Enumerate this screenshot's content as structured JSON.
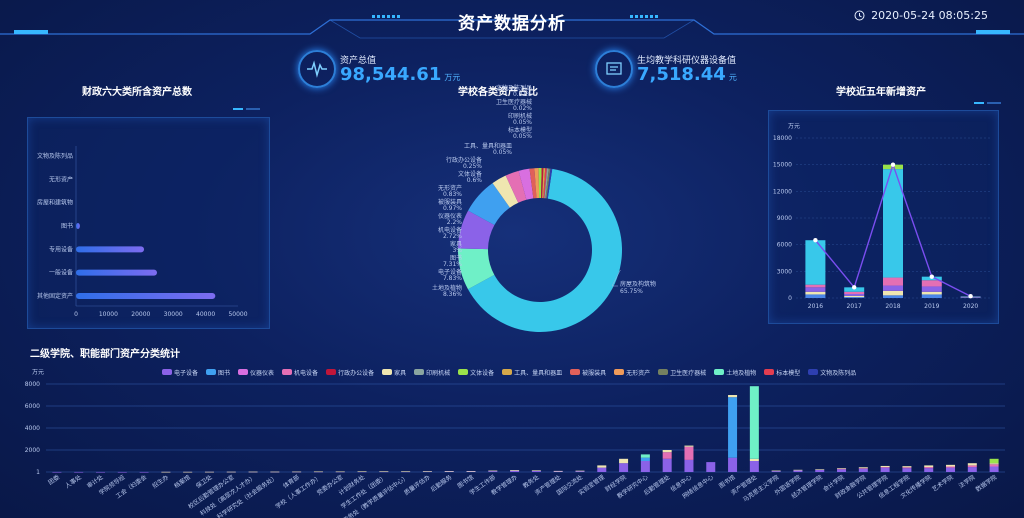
{
  "header": {
    "title": "资产数据分析",
    "datetime": "2020-05-24 08:05:25",
    "clock_icon": "clock-icon"
  },
  "kpis": [
    {
      "label": "资产总值",
      "value": "98,544.61",
      "unit": "万元",
      "icon": "pulse-icon"
    },
    {
      "label": "生均教学科研仪器设备值",
      "value": "7,518.44",
      "unit": "元",
      "icon": "instrument-icon"
    }
  ],
  "panels": {
    "left_title": "财政六大类所含资产总数",
    "center_title": "学校各类资产占比",
    "right_title": "学校近五年新增资产",
    "bottom_title": "二级学院、职能部门资产分类统计"
  },
  "colors": {
    "accent": "#39a8ff",
    "title": "#ffffff"
  },
  "chart_data": [
    {
      "id": "finance_six",
      "type": "bar",
      "orientation": "horizontal",
      "categories": [
        "文物及陈列品",
        "无形资产",
        "房屋和建筑物",
        "图书",
        "专用设备",
        "一般设备",
        "其他固定资产"
      ],
      "values": [
        0,
        0,
        0,
        1200,
        21000,
        25000,
        43000
      ],
      "xticks": [
        "0",
        "10000",
        "20000",
        "30000",
        "40000",
        "50000"
      ],
      "xlim": [
        0,
        50000
      ]
    },
    {
      "id": "asset_share",
      "type": "pie",
      "donut": true,
      "slices": [
        {
          "label": "房屋及构筑物",
          "value": 65.75,
          "pct": "65.75%",
          "color": "#38c8ea"
        },
        {
          "label": "土地及植物",
          "value": 8.36,
          "pct": "8.36%",
          "color": "#6ff0c7"
        },
        {
          "label": "电子设备",
          "value": 7.83,
          "pct": "7.83%",
          "color": "#8b62e8"
        },
        {
          "label": "图书",
          "value": 7.31,
          "pct": "7.31%",
          "color": "#3fa0f0"
        },
        {
          "label": "家具",
          "value": 3,
          "pct": "3%",
          "color": "#efe6b0"
        },
        {
          "label": "机电设备",
          "value": 2.72,
          "pct": "2.72%",
          "color": "#e46fb4"
        },
        {
          "label": "仪器仪表",
          "value": 2.2,
          "pct": "2.2%",
          "color": "#d86fe0"
        },
        {
          "label": "被服装具",
          "value": 0.97,
          "pct": "0.97%",
          "color": "#e0605a"
        },
        {
          "label": "无形资产",
          "value": 0.83,
          "pct": "0.83%",
          "color": "#ef9a5a"
        },
        {
          "label": "文体设备",
          "value": 0.6,
          "pct": "0.6%",
          "color": "#9ae24a"
        },
        {
          "label": "行政办公设备",
          "value": 0.25,
          "pct": "0.25%",
          "color": "#c0163a"
        },
        {
          "label": "工具、量具和器皿",
          "value": 0.05,
          "pct": "0.05%",
          "color": "#d6a84a"
        },
        {
          "label": "标本模型",
          "value": 0.05,
          "pct": "0.05%",
          "color": "#e23d50"
        },
        {
          "label": "印刷机械",
          "value": 0.05,
          "pct": "0.05%",
          "color": "#8aa5a0"
        },
        {
          "label": "卫生医疗器械",
          "value": 0.02,
          "pct": "0.02%",
          "color": "#748060"
        },
        {
          "label": "文物及陈列品",
          "value": 0.01,
          "pct": "0.01%",
          "color": "#2e3fb0"
        }
      ]
    },
    {
      "id": "five_year",
      "type": "bar",
      "stacked": true,
      "unit": "万元",
      "categories": [
        "2016",
        "2017",
        "2018",
        "2019",
        "2020"
      ],
      "line_values": [
        6500,
        1200,
        15000,
        2400,
        200
      ],
      "yticks": [
        "0",
        "3000",
        "6000",
        "9000",
        "12000",
        "15000",
        "18000"
      ],
      "ylim": [
        0,
        18000
      ],
      "series": [
        {
          "color": "#4a86e8",
          "values": [
            400,
            100,
            300,
            400,
            40
          ]
        },
        {
          "color": "#efe6b0",
          "values": [
            300,
            150,
            500,
            300,
            30
          ]
        },
        {
          "color": "#8b62e8",
          "values": [
            500,
            200,
            600,
            600,
            40
          ]
        },
        {
          "color": "#e46fb4",
          "values": [
            300,
            250,
            900,
            700,
            40
          ]
        },
        {
          "color": "#38c8ea",
          "values": [
            5000,
            500,
            12200,
            400,
            40
          ]
        },
        {
          "color": "#9ae24a",
          "values": [
            0,
            0,
            500,
            0,
            0
          ]
        }
      ]
    },
    {
      "id": "department",
      "type": "bar",
      "stacked": true,
      "unit": "万元",
      "yticks": [
        "1",
        "2000",
        "4000",
        "6000",
        "8000"
      ],
      "ylim": [
        0,
        8000
      ],
      "legend": [
        {
          "label": "电子设备",
          "color": "#8b62e8"
        },
        {
          "label": "图书",
          "color": "#3fa0f0"
        },
        {
          "label": "仪器仪表",
          "color": "#d86fe0"
        },
        {
          "label": "机电设备",
          "color": "#e46fb4"
        },
        {
          "label": "行政办公设备",
          "color": "#c0163a"
        },
        {
          "label": "家具",
          "color": "#efe6b0"
        },
        {
          "label": "印刷机械",
          "color": "#8aa5a0"
        },
        {
          "label": "文体设备",
          "color": "#9ae24a"
        },
        {
          "label": "工具、量具和器皿",
          "color": "#d6a84a"
        },
        {
          "label": "被服装具",
          "color": "#e0605a"
        },
        {
          "label": "无形资产",
          "color": "#ef9a5a"
        },
        {
          "label": "卫生医疗器械",
          "color": "#748060"
        },
        {
          "label": "土地及植物",
          "color": "#6ff0c7"
        },
        {
          "label": "标本模型",
          "color": "#e23d50"
        },
        {
          "label": "文物及陈列品",
          "color": "#2e3fb0"
        }
      ],
      "categories": [
        "团委",
        "人事处",
        "审计处",
        "学院领导班",
        "工会（妇委会",
        "招生办",
        "档案馆",
        "保卫处",
        "校区后勤管理办公室",
        "科技处（高层次人才办）",
        "科学研究处（社会服务处）",
        "体育部",
        "学校（人事工作办）",
        "党委办公室",
        "计划财务处",
        "学生工作处（团委）",
        "教务处（教学质量评估中心）",
        "质量评估办",
        "后勤服务",
        "图书馆",
        "学生工作部",
        "教学管理办",
        "教务处",
        "资产管理处",
        "国际交流处",
        "实验室管理",
        "财经学院",
        "教学研究中心",
        "后勤管理处",
        "信息中心",
        "网络信息中心",
        "图书馆",
        "资产管理处",
        "马克思主义学院",
        "外国语学院",
        "经济管理学院",
        "会计学院",
        "财政金融学院",
        "公共管理学院",
        "信息工程学院",
        "文化传播学院",
        "艺术学院",
        "法学院",
        "数据学院"
      ],
      "series": [
        {
          "color": "#8b62e8",
          "values": [
            5,
            5,
            5,
            5,
            5,
            10,
            10,
            15,
            15,
            20,
            20,
            25,
            30,
            30,
            35,
            40,
            40,
            50,
            55,
            60,
            80,
            120,
            100,
            60,
            80,
            400,
            800,
            1000,
            1200,
            1100,
            900,
            1300,
            1000,
            80,
            150,
            200,
            250,
            300,
            400,
            350,
            350,
            400,
            450,
            500
          ]
        },
        {
          "color": "#3fa0f0",
          "values": [
            0,
            0,
            0,
            0,
            0,
            0,
            0,
            0,
            0,
            0,
            0,
            0,
            0,
            0,
            0,
            0,
            0,
            0,
            0,
            0,
            0,
            0,
            0,
            0,
            0,
            0,
            0,
            300,
            0,
            0,
            0,
            5500,
            0,
            0,
            0,
            0,
            0,
            0,
            0,
            0,
            0,
            0,
            0,
            0
          ]
        },
        {
          "color": "#e46fb4",
          "values": [
            0,
            0,
            0,
            0,
            0,
            0,
            0,
            0,
            0,
            0,
            0,
            0,
            0,
            0,
            0,
            0,
            0,
            0,
            0,
            0,
            0,
            0,
            0,
            0,
            0,
            0,
            0,
            0,
            600,
            1200,
            0,
            0,
            0,
            0,
            0,
            0,
            50,
            50,
            50,
            80,
            100,
            100,
            150,
            200
          ]
        },
        {
          "color": "#efe6b0",
          "values": [
            0,
            0,
            0,
            0,
            0,
            5,
            5,
            5,
            10,
            10,
            10,
            10,
            15,
            15,
            20,
            20,
            20,
            20,
            30,
            30,
            50,
            60,
            50,
            40,
            40,
            200,
            400,
            0,
            200,
            100,
            0,
            200,
            200,
            50,
            50,
            50,
            50,
            80,
            100,
            100,
            150,
            150,
            200,
            100
          ]
        },
        {
          "color": "#6ff0c7",
          "values": [
            0,
            0,
            0,
            0,
            0,
            0,
            0,
            0,
            0,
            0,
            0,
            0,
            0,
            0,
            0,
            0,
            0,
            0,
            0,
            0,
            0,
            0,
            0,
            0,
            0,
            0,
            0,
            300,
            0,
            0,
            0,
            0,
            6600,
            0,
            0,
            0,
            0,
            0,
            0,
            0,
            0,
            0,
            0,
            0
          ]
        },
        {
          "color": "#9ae24a",
          "values": [
            0,
            0,
            0,
            0,
            0,
            0,
            0,
            0,
            0,
            0,
            0,
            0,
            0,
            0,
            0,
            0,
            0,
            0,
            0,
            0,
            0,
            0,
            0,
            0,
            0,
            0,
            0,
            0,
            0,
            0,
            0,
            0,
            0,
            0,
            0,
            0,
            0,
            0,
            0,
            0,
            0,
            0,
            0,
            400
          ]
        }
      ]
    }
  ]
}
